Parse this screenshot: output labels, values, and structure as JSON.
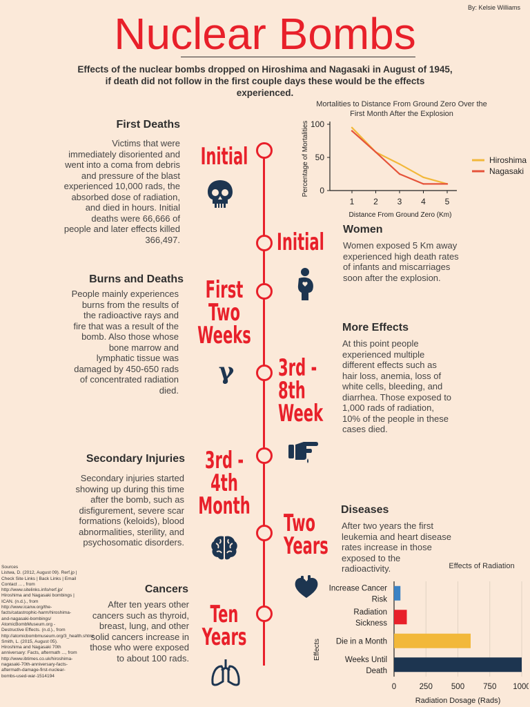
{
  "byline": "By: Kelsie Williams",
  "title": "Nuclear Bombs",
  "subtitle": "Effects of the nuclear bombs dropped on Hiroshima and Nagasaki in August of 1945, if death did not follow in the first couple days these would be the effects experienced.",
  "sections": {
    "first_deaths": {
      "heading": "First Deaths",
      "text": "Victims that were immediately disoriented and went into a coma from debris and pressure of the blast experienced 10,000 rads, the absorbed dose of radiation, and died in hours. Initial deaths were 66,666 of people and later effects killed 366,497."
    },
    "women": {
      "heading": "Women",
      "text": "Women exposed 5 Km away experienced high death rates of infants and miscarriages soon after the explosion."
    },
    "burns": {
      "heading": "Burns and Deaths",
      "text": "People mainly experiences burns from the results of the radioactive rays and fire that was a result of the bomb. Also those whose bone marrow and lymphatic tissue was damaged by 450-650 rads of concentrated radiation died."
    },
    "more_effects": {
      "heading": "More Effects",
      "text": "At this point people experienced multiple different effects such as hair loss, anemia, loss of white cells, bleeding, and diarrhea. Those exposed to 1,000 rads of radiation, 10% of the people in these cases died."
    },
    "secondary": {
      "heading": "Secondary Injuries",
      "text": "Secondary injuries started showing up during this time after the bomb, such as disfigurement, severe scar formations (keloids), blood abnormalities, sterility, and psychosomatic disorders."
    },
    "diseases": {
      "heading": "Diseases",
      "text": "After two years the first leukemia and heart disease rates increase in those exposed to the radioactivity."
    },
    "cancers": {
      "heading": "Cancers",
      "text": "After ten years other cancers such as thyroid, breast, lung, and other solid cancers increase in those who were exposed to about 100 rads."
    }
  },
  "stages": {
    "initial_1": "Initial",
    "initial_2": "Initial",
    "first_two_weeks": "First Two Weeks",
    "third_8th_week": "3rd - 8th Week",
    "third_4th_month": "3rd - 4th Month",
    "two_years": "Two Years",
    "ten_years": "Ten Years"
  },
  "icons": {
    "first_deaths": "skull-icon",
    "women": "pregnant-woman-icon",
    "burns": "gamma-icon",
    "more_effects": "pointing-hand-icon",
    "secondary": "brain-icon",
    "diseases": "heart-icon",
    "cancers": "lungs-icon",
    "gamma_glyph": "γ"
  },
  "sources": "Sources\nListwa, D. (2012, August 09). Rerf.jp | Check Site Links | Back Links | Email Contact ... , from http://www.sitelinks.info/rerf.jp/\nHiroshima and Nagasaki bombings | ICAN. (n.d.)., from http://www.icanw.org/the-facts/catastrophic-harm/hiroshima-and-nagasaki-bombings/\nAtomicBombMuseum.org - Destructive Effects. (n.d.)., from http://atomicbombmuseum.org/3_health.shtml\nSmith, L. (2015, August 05). Hiroshima and Nagasaki 70th anniversary: Facts, aftermath ..., from http://www.ibtimes.co.uk/hiroshima-nagasaki-70th-anniversary-facts-aftermath-damage-first-nuclear-bombs-used-war-1514194",
  "colors": {
    "red": "#e8202a",
    "navy": "#1d3550",
    "background": "#fbe9d9",
    "hiroshima": "#f2b83a",
    "nagasaki": "#e5533a"
  },
  "chart_data": [
    {
      "type": "line",
      "title": "Mortalities to Distance From Ground Zero Over the First Month After the Explosion",
      "xlabel": "Distance From Ground Zero (Km)",
      "ylabel": "Percentage of Mortalities",
      "x": [
        1,
        2,
        3,
        4,
        5
      ],
      "xticks": [
        "1",
        "2",
        "3",
        "4",
        "5"
      ],
      "yticks": [
        "0",
        "50",
        "100"
      ],
      "ylim": [
        0,
        100
      ],
      "legend": "right",
      "series": [
        {
          "name": "Hiroshima",
          "color": "#f2b83a",
          "values": [
            95,
            58,
            40,
            20,
            10
          ]
        },
        {
          "name": "Nagasaki",
          "color": "#e5533a",
          "values": [
            90,
            58,
            25,
            10,
            10
          ]
        }
      ]
    },
    {
      "type": "bar",
      "orientation": "horizontal",
      "title": "Effects of Radiation",
      "xlabel": "Radiation Dosage (Rads)",
      "ylabel": "Effects",
      "categories": [
        "Increase Cancer Risk",
        "Radiation Sickness",
        "Die in a Month",
        "Weeks Until Death"
      ],
      "values": [
        50,
        100,
        600,
        1000
      ],
      "colors": [
        "#3b82c4",
        "#e8202a",
        "#f2b83a",
        "#1d3550"
      ],
      "xticks": [
        "0",
        "250",
        "500",
        "750",
        "1000"
      ],
      "xlim": [
        0,
        1000
      ],
      "grid": true
    }
  ]
}
